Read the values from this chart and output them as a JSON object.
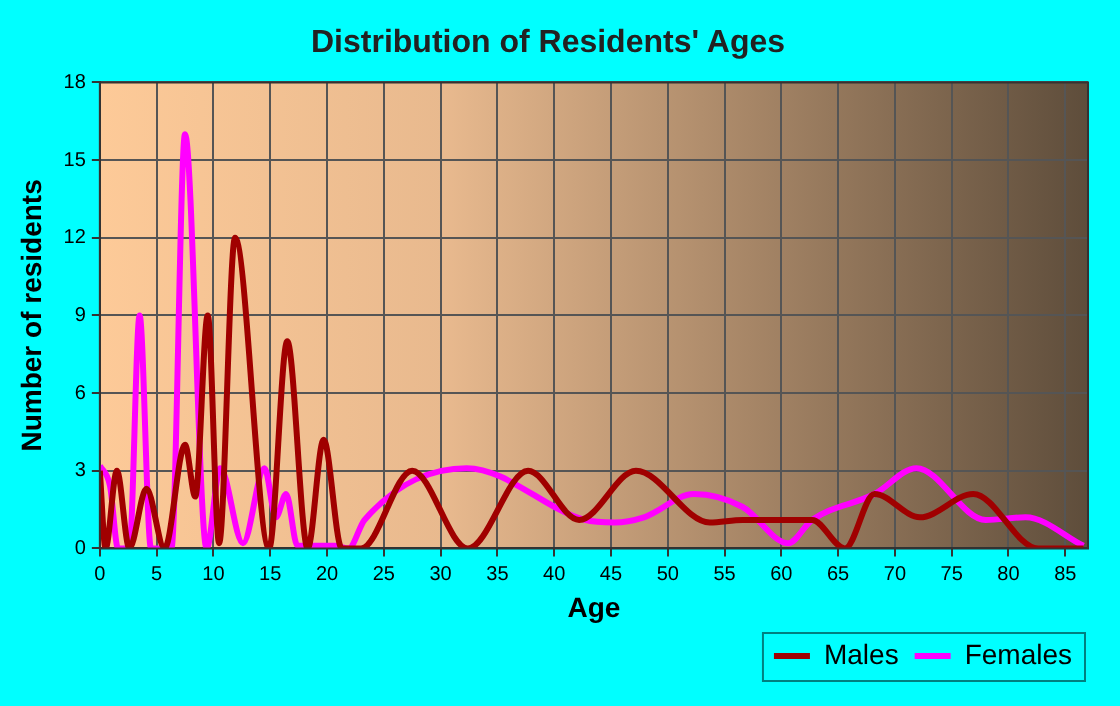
{
  "chart_data": {
    "type": "line",
    "title": "Distribution of Residents' Ages",
    "xlabel": "Age",
    "ylabel": "Number of residents",
    "xlim": [
      0,
      87
    ],
    "xticks": [
      0,
      5,
      10,
      15,
      20,
      25,
      30,
      35,
      40,
      45,
      50,
      55,
      60,
      65,
      70,
      75,
      80,
      85
    ],
    "ylim": [
      0,
      18
    ],
    "yticks": [
      0,
      3,
      6,
      9,
      12,
      15,
      18
    ],
    "grid": true,
    "legend": "bottom right",
    "marker": "none",
    "line_style": "solid",
    "series": [
      {
        "name": "Males",
        "color": "#a00000",
        "x": [
          0,
          0.5,
          1.5,
          2.6,
          4.1,
          5.7,
          7.5,
          8.4,
          9.5,
          10.5,
          11.9,
          14.9,
          16.5,
          18.3,
          19.7,
          21.3,
          23,
          27.5,
          32.4,
          37.7,
          42.2,
          47.2,
          53.7,
          56.6,
          62.7,
          65.6,
          68.2,
          72.2,
          76.9,
          82.6,
          86.6
        ],
        "values": [
          3,
          0,
          3,
          0,
          2.3,
          0,
          4,
          2,
          9,
          0.2,
          12,
          0,
          8,
          0,
          4.2,
          0,
          0,
          3,
          0,
          3,
          1.1,
          3,
          1,
          1.1,
          1.1,
          0,
          2.1,
          1.2,
          2.1,
          0,
          0
        ]
      },
      {
        "name": "Females",
        "color": "#ff00ff",
        "x": [
          0,
          0.9,
          1.6,
          2.6,
          3.5,
          4.5,
          6.3,
          7.5,
          9.4,
          10.6,
          12.6,
          14.5,
          15.5,
          16.4,
          17.4,
          20.7,
          21.9,
          23.3,
          32.3,
          42.7,
          45.3,
          47.9,
          52.3,
          56.6,
          60.6,
          62.7,
          68.2,
          71.9,
          78,
          81.5,
          86.6
        ],
        "values": [
          3.2,
          2.4,
          0,
          0,
          9,
          0,
          0,
          16,
          0,
          3.1,
          0.2,
          3.1,
          1.2,
          2.1,
          0.1,
          0.1,
          0,
          1.1,
          3.1,
          1.1,
          1,
          1.2,
          2.1,
          1.6,
          0.2,
          1.1,
          2.1,
          3.1,
          1.1,
          1.2,
          0.1
        ]
      }
    ]
  }
}
